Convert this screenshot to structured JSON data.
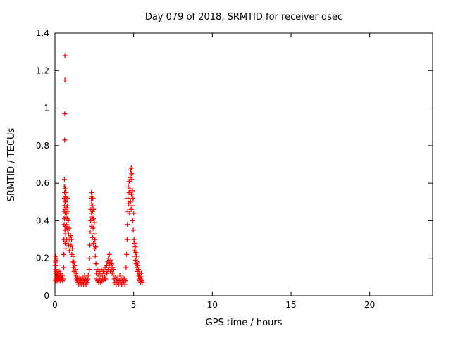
{
  "chart_data": {
    "type": "scatter",
    "title": "Day 079 of 2018, SRMTID for receiver qsec",
    "xlabel": "GPS time / hours",
    "ylabel": "SRMTID / TECUs",
    "xlim": [
      0,
      24
    ],
    "ylim": [
      0,
      1.4
    ],
    "xticks": {
      "values": [
        0,
        5,
        10,
        15,
        20
      ],
      "labels": [
        "0",
        "5",
        "10",
        "15",
        "20"
      ]
    },
    "yticks": {
      "values": [
        0,
        0.2,
        0.4,
        0.6,
        0.8,
        1.0,
        1.2,
        1.4
      ],
      "labels": [
        "0",
        "0.2",
        "0.4",
        "0.6",
        "0.8",
        "1",
        "1.2",
        "1.4"
      ]
    },
    "grid": false,
    "legend": "none",
    "background_color": "#ffffff",
    "border_color": "#000000",
    "marker": {
      "shape": "plus",
      "color": "#ff0000",
      "half_size": 3.5,
      "stroke_width": 1.3
    },
    "series": [
      {
        "name": "SRMTID",
        "points": [
          [
            0.03,
            0.1
          ],
          [
            0.04,
            0.12
          ],
          [
            0.04,
            0.16
          ],
          [
            0.05,
            0.08
          ],
          [
            0.05,
            0.13
          ],
          [
            0.05,
            0.18
          ],
          [
            0.05,
            0.21
          ],
          [
            0.06,
            0.09
          ],
          [
            0.06,
            0.14
          ],
          [
            0.06,
            0.19
          ],
          [
            0.07,
            0.11
          ],
          [
            0.07,
            0.16
          ],
          [
            0.08,
            0.1
          ],
          [
            0.08,
            0.2
          ],
          [
            0.09,
            0.13
          ],
          [
            0.1,
            0.09
          ],
          [
            0.12,
            0.11
          ],
          [
            0.13,
            0.08
          ],
          [
            0.15,
            0.1
          ],
          [
            0.16,
            0.12
          ],
          [
            0.17,
            0.09
          ],
          [
            0.19,
            0.11
          ],
          [
            0.2,
            0.08
          ],
          [
            0.21,
            0.1
          ],
          [
            0.23,
            0.12
          ],
          [
            0.24,
            0.09
          ],
          [
            0.26,
            0.1
          ],
          [
            0.27,
            0.13
          ],
          [
            0.29,
            0.09
          ],
          [
            0.3,
            0.11
          ],
          [
            0.32,
            0.1
          ],
          [
            0.33,
            0.08
          ],
          [
            0.35,
            0.12
          ],
          [
            0.36,
            0.09
          ],
          [
            0.38,
            0.1
          ],
          [
            0.4,
            0.11
          ],
          [
            0.42,
            0.09
          ],
          [
            0.44,
            0.1
          ],
          [
            0.46,
            0.1
          ],
          [
            0.48,
            0.08
          ],
          [
            0.5,
            0.11
          ],
          [
            0.52,
            0.09
          ],
          [
            0.55,
            0.15
          ],
          [
            0.56,
            0.22
          ],
          [
            0.57,
            0.3
          ],
          [
            0.58,
            0.38
          ],
          [
            0.58,
            0.45
          ],
          [
            0.59,
            0.52
          ],
          [
            0.59,
            0.58
          ],
          [
            0.6,
            0.62
          ],
          [
            0.6,
            0.48
          ],
          [
            0.61,
            0.41
          ],
          [
            0.61,
            0.55
          ],
          [
            0.62,
            0.83
          ],
          [
            0.62,
            0.97
          ],
          [
            0.63,
            1.15
          ],
          [
            0.63,
            1.28
          ],
          [
            0.63,
            0.35
          ],
          [
            0.64,
            0.44
          ],
          [
            0.64,
            0.57
          ],
          [
            0.65,
            0.5
          ],
          [
            0.65,
            0.28
          ],
          [
            0.66,
            0.37
          ],
          [
            0.66,
            0.53
          ],
          [
            0.67,
            0.46
          ],
          [
            0.68,
            0.58
          ],
          [
            0.68,
            0.33
          ],
          [
            0.69,
            0.42
          ],
          [
            0.7,
            0.55
          ],
          [
            0.7,
            0.25
          ],
          [
            0.71,
            0.47
          ],
          [
            0.72,
            0.38
          ],
          [
            0.72,
            0.52
          ],
          [
            0.73,
            0.3
          ],
          [
            0.74,
            0.44
          ],
          [
            0.75,
            0.36
          ],
          [
            0.78,
            0.48
          ],
          [
            0.79,
            0.41
          ],
          [
            0.8,
            0.52
          ],
          [
            0.81,
            0.35
          ],
          [
            0.82,
            0.45
          ],
          [
            0.83,
            0.3
          ],
          [
            0.85,
            0.4
          ],
          [
            0.86,
            0.33
          ],
          [
            0.88,
            0.27
          ],
          [
            0.9,
            0.36
          ],
          [
            0.92,
            0.24
          ],
          [
            0.94,
            0.3
          ],
          [
            1.0,
            0.32
          ],
          [
            1.02,
            0.27
          ],
          [
            1.05,
            0.3
          ],
          [
            1.07,
            0.22
          ],
          [
            1.1,
            0.25
          ],
          [
            1.12,
            0.18
          ],
          [
            1.15,
            0.21
          ],
          [
            1.18,
            0.15
          ],
          [
            1.2,
            0.18
          ],
          [
            1.22,
            0.13
          ],
          [
            1.25,
            0.16
          ],
          [
            1.28,
            0.11
          ],
          [
            1.3,
            0.14
          ],
          [
            1.33,
            0.1
          ],
          [
            1.35,
            0.12
          ],
          [
            1.38,
            0.09
          ],
          [
            1.4,
            0.08
          ],
          [
            1.43,
            0.1
          ],
          [
            1.46,
            0.07
          ],
          [
            1.49,
            0.09
          ],
          [
            1.52,
            0.06
          ],
          [
            1.55,
            0.08
          ],
          [
            1.58,
            0.1
          ],
          [
            1.61,
            0.07
          ],
          [
            1.64,
            0.09
          ],
          [
            1.67,
            0.06
          ],
          [
            1.7,
            0.08
          ],
          [
            1.73,
            0.1
          ],
          [
            1.76,
            0.07
          ],
          [
            1.79,
            0.09
          ],
          [
            1.82,
            0.06
          ],
          [
            1.85,
            0.08
          ],
          [
            1.88,
            0.11
          ],
          [
            1.91,
            0.07
          ],
          [
            1.94,
            0.09
          ],
          [
            1.97,
            0.06
          ],
          [
            2.0,
            0.08
          ],
          [
            2.03,
            0.1
          ],
          [
            2.06,
            0.07
          ],
          [
            2.09,
            0.09
          ],
          [
            2.12,
            0.11
          ],
          [
            2.18,
            0.14
          ],
          [
            2.2,
            0.2
          ],
          [
            2.22,
            0.27
          ],
          [
            2.24,
            0.34
          ],
          [
            2.26,
            0.4
          ],
          [
            2.28,
            0.46
          ],
          [
            2.3,
            0.52
          ],
          [
            2.31,
            0.55
          ],
          [
            2.32,
            0.44
          ],
          [
            2.33,
            0.49
          ],
          [
            2.34,
            0.37
          ],
          [
            2.35,
            0.53
          ],
          [
            2.36,
            0.42
          ],
          [
            2.38,
            0.48
          ],
          [
            2.39,
            0.31
          ],
          [
            2.4,
            0.45
          ],
          [
            2.41,
            0.52
          ],
          [
            2.42,
            0.36
          ],
          [
            2.44,
            0.41
          ],
          [
            2.45,
            0.28
          ],
          [
            2.46,
            0.46
          ],
          [
            2.48,
            0.33
          ],
          [
            2.5,
            0.39
          ],
          [
            2.52,
            0.25
          ],
          [
            2.54,
            0.3
          ],
          [
            2.56,
            0.21
          ],
          [
            2.58,
            0.26
          ],
          [
            2.6,
            0.17
          ],
          [
            2.62,
            0.12
          ],
          [
            2.65,
            0.09
          ],
          [
            2.68,
            0.14
          ],
          [
            2.71,
            0.08
          ],
          [
            2.74,
            0.11
          ],
          [
            2.77,
            0.07
          ],
          [
            2.8,
            0.13
          ],
          [
            2.83,
            0.09
          ],
          [
            2.86,
            0.12
          ],
          [
            2.89,
            0.07
          ],
          [
            2.92,
            0.1
          ],
          [
            2.95,
            0.14
          ],
          [
            2.98,
            0.08
          ],
          [
            3.01,
            0.11
          ],
          [
            3.04,
            0.09
          ],
          [
            3.07,
            0.13
          ],
          [
            3.1,
            0.08
          ],
          [
            3.13,
            0.12
          ],
          [
            3.16,
            0.1
          ],
          [
            3.19,
            0.15
          ],
          [
            3.22,
            0.09
          ],
          [
            3.25,
            0.12
          ],
          [
            3.28,
            0.16
          ],
          [
            3.31,
            0.12
          ],
          [
            3.34,
            0.18
          ],
          [
            3.37,
            0.14
          ],
          [
            3.4,
            0.2
          ],
          [
            3.43,
            0.15
          ],
          [
            3.46,
            0.22
          ],
          [
            3.49,
            0.17
          ],
          [
            3.52,
            0.13
          ],
          [
            3.55,
            0.19
          ],
          [
            3.58,
            0.14
          ],
          [
            3.61,
            0.17
          ],
          [
            3.64,
            0.12
          ],
          [
            3.67,
            0.15
          ],
          [
            3.7,
            0.11
          ],
          [
            3.73,
            0.14
          ],
          [
            3.76,
            0.09
          ],
          [
            3.8,
            0.07
          ],
          [
            3.84,
            0.1
          ],
          [
            3.88,
            0.06
          ],
          [
            3.92,
            0.09
          ],
          [
            3.96,
            0.07
          ],
          [
            4.0,
            0.1
          ],
          [
            4.04,
            0.06
          ],
          [
            4.08,
            0.08
          ],
          [
            4.12,
            0.11
          ],
          [
            4.16,
            0.07
          ],
          [
            4.2,
            0.09
          ],
          [
            4.24,
            0.06
          ],
          [
            4.28,
            0.08
          ],
          [
            4.32,
            0.1
          ],
          [
            4.36,
            0.07
          ],
          [
            4.4,
            0.09
          ],
          [
            4.44,
            0.06
          ],
          [
            4.48,
            0.08
          ],
          [
            4.52,
            0.15
          ],
          [
            4.55,
            0.22
          ],
          [
            4.58,
            0.3
          ],
          [
            4.6,
            0.38
          ],
          [
            4.62,
            0.45
          ],
          [
            4.64,
            0.52
          ],
          [
            4.66,
            0.58
          ],
          [
            4.68,
            0.49
          ],
          [
            4.7,
            0.55
          ],
          [
            4.72,
            0.61
          ],
          [
            4.74,
            0.44
          ],
          [
            4.76,
            0.57
          ],
          [
            4.78,
            0.63
          ],
          [
            4.8,
            0.5
          ],
          [
            4.82,
            0.67
          ],
          [
            4.85,
            0.68
          ],
          [
            4.87,
            0.65
          ],
          [
            4.84,
            0.46
          ],
          [
            4.86,
            0.54
          ],
          [
            4.88,
            0.62
          ],
          [
            4.9,
            0.48
          ],
          [
            4.92,
            0.56
          ],
          [
            4.94,
            0.4
          ],
          [
            4.96,
            0.52
          ],
          [
            4.98,
            0.35
          ],
          [
            5.0,
            0.44
          ],
          [
            5.02,
            0.3
          ],
          [
            5.04,
            0.24
          ],
          [
            5.06,
            0.28
          ],
          [
            5.08,
            0.21
          ],
          [
            5.1,
            0.26
          ],
          [
            5.12,
            0.19
          ],
          [
            5.14,
            0.23
          ],
          [
            5.16,
            0.17
          ],
          [
            5.18,
            0.21
          ],
          [
            5.2,
            0.15
          ],
          [
            5.22,
            0.18
          ],
          [
            5.24,
            0.13
          ],
          [
            5.26,
            0.16
          ],
          [
            5.28,
            0.11
          ],
          [
            5.3,
            0.14
          ],
          [
            5.32,
            0.1
          ],
          [
            5.34,
            0.12
          ],
          [
            5.36,
            0.09
          ],
          [
            5.38,
            0.11
          ],
          [
            5.4,
            0.08
          ],
          [
            5.42,
            0.1
          ],
          [
            5.44,
            0.07
          ],
          [
            5.46,
            0.09
          ],
          [
            5.48,
            0.12
          ],
          [
            5.5,
            0.08
          ],
          [
            5.52,
            0.1
          ],
          [
            5.55,
            0.07
          ]
        ]
      }
    ]
  }
}
